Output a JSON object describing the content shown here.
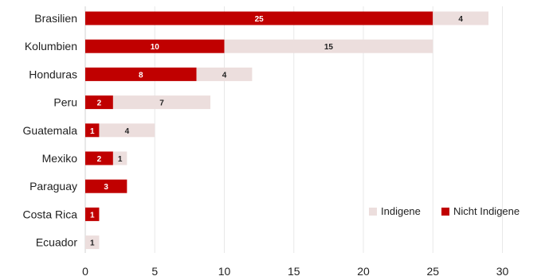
{
  "chart_data": {
    "type": "bar",
    "orientation": "horizontal",
    "stacked": true,
    "categories": [
      "Brasilien",
      "Kolumbien",
      "Honduras",
      "Peru",
      "Guatemala",
      "Mexiko",
      "Paraguay",
      "Costa Rica",
      "Ecuador"
    ],
    "series": [
      {
        "name": "Nicht Indigene",
        "values": [
          25,
          10,
          8,
          2,
          1,
          2,
          3,
          1,
          0
        ],
        "color": "#c00000"
      },
      {
        "name": "Indigene",
        "values": [
          4,
          15,
          4,
          7,
          4,
          1,
          0,
          0,
          1
        ],
        "color": "#ecdedd"
      }
    ],
    "legend_order": [
      "Indigene",
      "Nicht Indigene"
    ],
    "legend_position": "right",
    "xlim": [
      0,
      33
    ],
    "xticks": [
      0,
      5,
      10,
      15,
      20,
      25,
      30
    ],
    "grid": "vertical",
    "title": "",
    "xlabel": "",
    "ylabel": ""
  }
}
